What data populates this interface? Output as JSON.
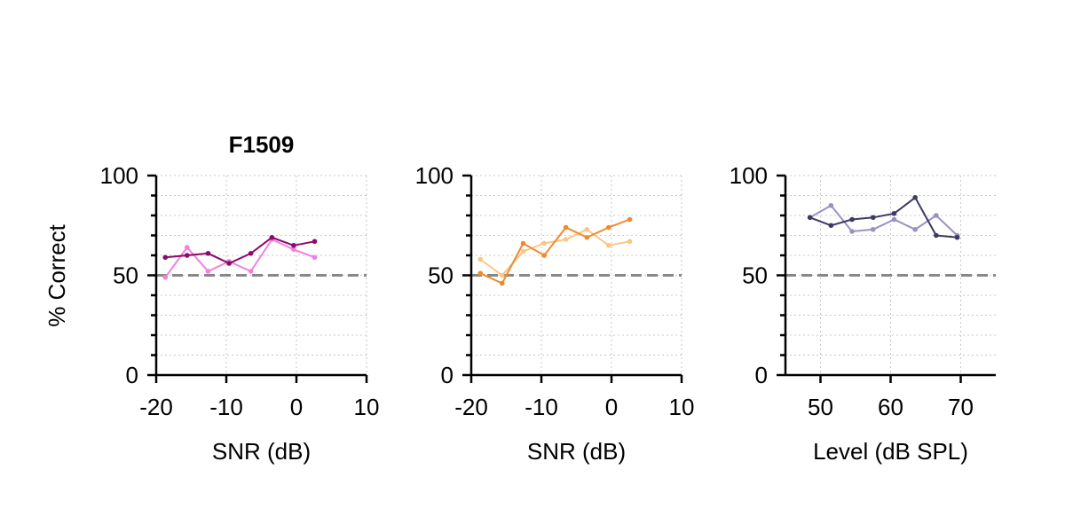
{
  "ylabel": "% Correct",
  "chance_color": "#888888",
  "chart_data": [
    {
      "type": "line",
      "title": "F1509",
      "xlabel": "SNR (dB)",
      "ylabel": "% Correct",
      "xlim": [
        -20,
        10
      ],
      "ylim": [
        0,
        100
      ],
      "xticks": [
        -20,
        -10,
        0,
        10
      ],
      "yticks": [
        0,
        50,
        100
      ],
      "grid": true,
      "reference_line": 50,
      "series": [
        {
          "color": "#ee82dd",
          "x": [
            -18.7,
            -15.6,
            -12.6,
            -9.6,
            -6.5,
            -3.5,
            -0.4,
            2.6
          ],
          "y": [
            49,
            64,
            52,
            57,
            52,
            68,
            63,
            59
          ]
        },
        {
          "color": "#8b0a6e",
          "x": [
            -18.7,
            -15.6,
            -12.6,
            -9.6,
            -6.5,
            -3.5,
            -0.4,
            2.6
          ],
          "y": [
            59,
            60,
            61,
            56,
            61,
            69,
            65,
            67
          ]
        }
      ]
    },
    {
      "type": "line",
      "title": "",
      "xlabel": "SNR (dB)",
      "xlim": [
        -20,
        10
      ],
      "ylim": [
        0,
        100
      ],
      "xticks": [
        -20,
        -10,
        0,
        10
      ],
      "yticks": [
        0,
        50,
        100
      ],
      "grid": true,
      "reference_line": 50,
      "series": [
        {
          "color": "#fcc682",
          "x": [
            -18.7,
            -15.6,
            -12.6,
            -9.6,
            -6.5,
            -3.5,
            -0.4,
            2.6
          ],
          "y": [
            58,
            50,
            62,
            66,
            68,
            73,
            65,
            67
          ]
        },
        {
          "color": "#f08a2c",
          "x": [
            -18.7,
            -15.6,
            -12.6,
            -9.6,
            -6.5,
            -3.5,
            -0.4,
            2.6
          ],
          "y": [
            51,
            46,
            66,
            60,
            74,
            69,
            74,
            78
          ]
        }
      ]
    },
    {
      "type": "line",
      "title": "",
      "xlabel": "Level (dB SPL)",
      "xlim": [
        45,
        75
      ],
      "ylim": [
        0,
        100
      ],
      "xticks": [
        50,
        60,
        70
      ],
      "yticks": [
        0,
        50,
        100
      ],
      "grid": true,
      "reference_line": 50,
      "series": [
        {
          "color": "#9b8fc4",
          "x": [
            48.5,
            51.5,
            54.5,
            57.5,
            60.5,
            63.5,
            66.5,
            69.5
          ],
          "y": [
            79,
            85,
            72,
            73,
            78,
            73,
            80,
            70
          ]
        },
        {
          "color": "#3b3a63",
          "x": [
            48.5,
            51.5,
            54.5,
            57.5,
            60.5,
            63.5,
            66.5,
            69.5
          ],
          "y": [
            79,
            75,
            78,
            79,
            81,
            89,
            70,
            69
          ]
        }
      ]
    }
  ]
}
